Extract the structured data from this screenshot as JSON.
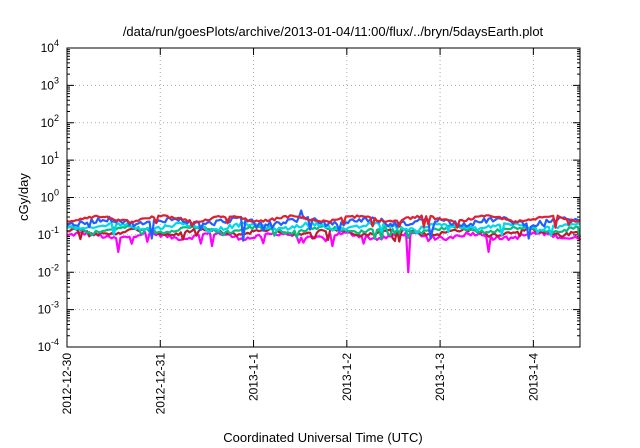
{
  "chart_data": {
    "type": "line",
    "title": "/data/run/goesPlots/archive/2013-01-04/11:00/flux/../bryn/5daysEarth.plot",
    "xlabel": "Coordinated Universal Time (UTC)",
    "ylabel": "cGy/day",
    "y_scale": "log",
    "ylim": [
      0.0001,
      10000
    ],
    "xlim_days": [
      0,
      5.5
    ],
    "grid": true,
    "legend": "none",
    "y_ticks": [
      {
        "base": "10",
        "exp": "-4"
      },
      {
        "base": "10",
        "exp": "-3"
      },
      {
        "base": "10",
        "exp": "-2"
      },
      {
        "base": "10",
        "exp": "-1"
      },
      {
        "base": "10",
        "exp": "0"
      },
      {
        "base": "10",
        "exp": "1"
      },
      {
        "base": "10",
        "exp": "2"
      },
      {
        "base": "10",
        "exp": "3"
      },
      {
        "base": "10",
        "exp": "4"
      }
    ],
    "x_ticks": [
      {
        "label": "2012-12-30",
        "day": 0
      },
      {
        "label": "2012-12-31",
        "day": 1
      },
      {
        "label": "2013-1-1",
        "day": 2
      },
      {
        "label": "2013-1-2",
        "day": 3
      },
      {
        "label": "2013-1-3",
        "day": 4
      },
      {
        "label": "2013-1-4",
        "day": 5
      }
    ],
    "series": [
      {
        "color": "#ff00ff",
        "baseline": 0.095,
        "noise": 0.12,
        "dips": [
          [
            0.55,
            0.035
          ],
          [
            1.55,
            0.05
          ],
          [
            2.1,
            0.06
          ],
          [
            2.85,
            0.05
          ],
          [
            3.66,
            0.01
          ],
          [
            4.52,
            0.035
          ]
        ],
        "spikes": []
      },
      {
        "color": "#c0182c",
        "baseline": 0.12,
        "noise": 0.1,
        "dips": [],
        "spikes": []
      },
      {
        "color": "#00c080",
        "baseline": 0.14,
        "noise": 0.1,
        "dips": [],
        "spikes": []
      },
      {
        "color": "#00d8e8",
        "baseline": 0.17,
        "noise": 0.12,
        "dips": [],
        "spikes": []
      },
      {
        "color": "#2060ff",
        "baseline": 0.23,
        "noise": 0.16,
        "dips": [
          [
            0.9,
            0.08
          ],
          [
            1.9,
            0.07
          ],
          [
            3.9,
            0.08
          ],
          [
            4.95,
            0.08
          ]
        ],
        "spikes": [
          [
            2.5,
            0.45
          ]
        ]
      },
      {
        "color": "#e02030",
        "baseline": 0.27,
        "noise": 0.08,
        "dips": [],
        "spikes": []
      }
    ]
  }
}
